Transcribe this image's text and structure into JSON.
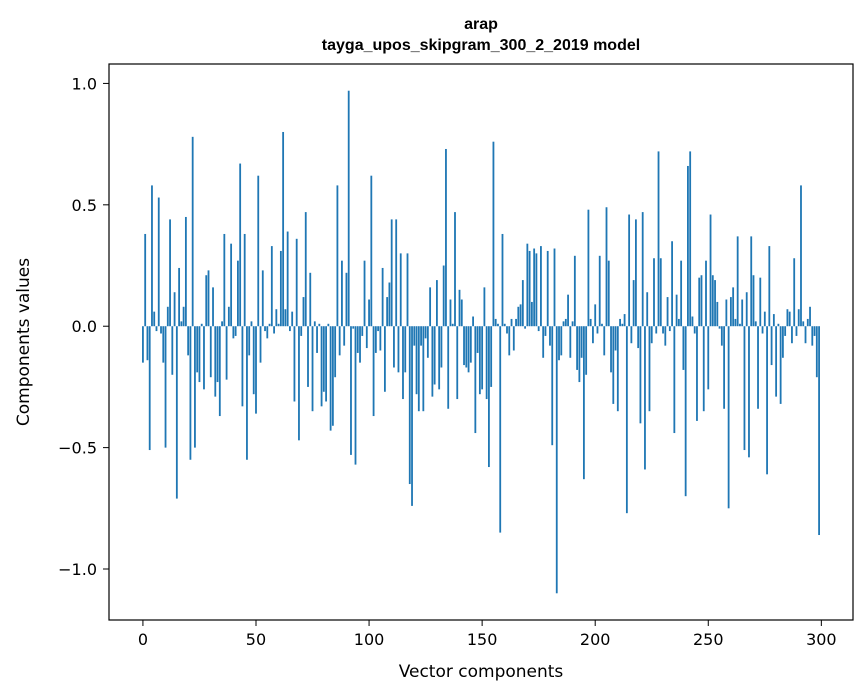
{
  "chart_data": {
    "type": "bar",
    "title": "arap",
    "subtitle": "tayga_upos_skipgram_300_2_2019 model",
    "xlabel": "Vector components",
    "ylabel": "Components values",
    "xlim": [
      -15,
      314
    ],
    "ylim": [
      -1.21,
      1.08
    ],
    "x_ticks": [
      0,
      50,
      100,
      150,
      200,
      250,
      300
    ],
    "x_tick_labels": [
      "0",
      "50",
      "100",
      "150",
      "200",
      "250",
      "300"
    ],
    "y_ticks": [
      1.0,
      0.5,
      0.0,
      -0.5,
      -1.0
    ],
    "y_tick_labels": [
      "1.0",
      "0.5",
      "0.0",
      "−0.5",
      "−1.0"
    ],
    "grid": false,
    "bar_color": "#1f77b4",
    "series": [
      {
        "name": "arap",
        "values": [
          -0.15,
          0.38,
          -0.14,
          -0.51,
          0.58,
          0.06,
          -0.02,
          0.53,
          -0.03,
          -0.15,
          -0.5,
          0.08,
          0.44,
          -0.2,
          0.14,
          -0.71,
          0.24,
          0.02,
          0.08,
          0.45,
          -0.12,
          -0.55,
          0.78,
          -0.5,
          -0.19,
          -0.23,
          0.01,
          -0.26,
          0.21,
          0.23,
          -0.21,
          0.16,
          -0.29,
          -0.23,
          -0.37,
          0.02,
          0.38,
          -0.22,
          0.08,
          0.34,
          -0.05,
          -0.04,
          0.27,
          0.67,
          -0.33,
          0.38,
          -0.55,
          -0.12,
          0.02,
          -0.28,
          -0.36,
          0.62,
          -0.15,
          0.23,
          -0.02,
          -0.05,
          0.01,
          0.33,
          -0.03,
          0.07,
          0.01,
          0.31,
          0.8,
          0.07,
          0.39,
          -0.02,
          0.06,
          -0.31,
          0.36,
          -0.47,
          -0.04,
          0.12,
          0.47,
          -0.25,
          0.22,
          -0.35,
          0.02,
          -0.11,
          0.01,
          -0.33,
          -0.27,
          -0.31,
          0.01,
          -0.43,
          -0.41,
          -0.21,
          0.58,
          -0.12,
          0.27,
          -0.08,
          0.22,
          0.97,
          -0.53,
          -0.01,
          -0.57,
          -0.11,
          -0.15,
          -0.04,
          0.27,
          -0.09,
          0.11,
          0.62,
          -0.37,
          -0.11,
          -0.02,
          -0.1,
          0.24,
          -0.27,
          0.12,
          0.18,
          0.44,
          -0.17,
          0.44,
          -0.19,
          0.3,
          -0.3,
          -0.19,
          0.3,
          -0.65,
          -0.74,
          -0.08,
          -0.28,
          -0.35,
          -0.08,
          -0.35,
          -0.05,
          -0.13,
          0.16,
          -0.29,
          -0.24,
          0.19,
          -0.26,
          -0.17,
          0.25,
          0.73,
          -0.34,
          0.11,
          0.01,
          0.47,
          -0.3,
          0.15,
          0.11,
          -0.16,
          -0.17,
          -0.19,
          -0.15,
          0.04,
          -0.44,
          -0.11,
          -0.28,
          -0.26,
          0.16,
          -0.3,
          -0.58,
          -0.25,
          0.76,
          0.03,
          0.01,
          -0.85,
          0.38,
          0.01,
          -0.03,
          -0.12,
          0.03,
          -0.1,
          0.03,
          0.08,
          0.09,
          0.19,
          -0.01,
          0.34,
          0.31,
          0.1,
          0.32,
          0.3,
          -0.02,
          0.33,
          -0.13,
          -0.04,
          0.31,
          -0.08,
          -0.49,
          0.32,
          -1.1,
          -0.14,
          -0.12,
          0.02,
          0.03,
          0.13,
          -0.13,
          0.02,
          0.29,
          -0.18,
          -0.23,
          -0.13,
          -0.63,
          -0.2,
          0.48,
          0.03,
          -0.07,
          0.09,
          -0.03,
          0.29,
          0.01,
          -0.12,
          0.49,
          0.27,
          -0.19,
          -0.32,
          -0.1,
          -0.35,
          0.03,
          0.01,
          0.05,
          -0.77,
          0.46,
          -0.07,
          0.19,
          0.44,
          -0.09,
          -0.4,
          0.47,
          -0.59,
          0.14,
          -0.35,
          -0.07,
          0.28,
          -0.03,
          0.72,
          0.28,
          -0.03,
          -0.08,
          0.12,
          -0.02,
          0.35,
          -0.44,
          0.13,
          0.03,
          0.27,
          -0.18,
          -0.7,
          0.66,
          0.72,
          0.04,
          -0.03,
          -0.39,
          0.2,
          0.21,
          -0.35,
          0.27,
          -0.26,
          0.46,
          0.21,
          0.19,
          0.1,
          -0.01,
          -0.08,
          -0.34,
          0.11,
          -0.75,
          0.12,
          0.16,
          0.03,
          0.37,
          0.01,
          0.11,
          -0.51,
          0.14,
          -0.54,
          0.37,
          0.21,
          0.02,
          -0.34,
          0.2,
          -0.03,
          0.06,
          -0.61,
          0.33,
          -0.16,
          0.05,
          -0.29,
          0.01,
          -0.32,
          -0.13,
          -0.04,
          0.07,
          0.06,
          -0.07,
          0.28,
          -0.04,
          0.07,
          0.58,
          0.02,
          -0.07,
          0.03,
          0.08,
          -0.08,
          -0.04,
          -0.21,
          -0.86
        ]
      }
    ]
  }
}
